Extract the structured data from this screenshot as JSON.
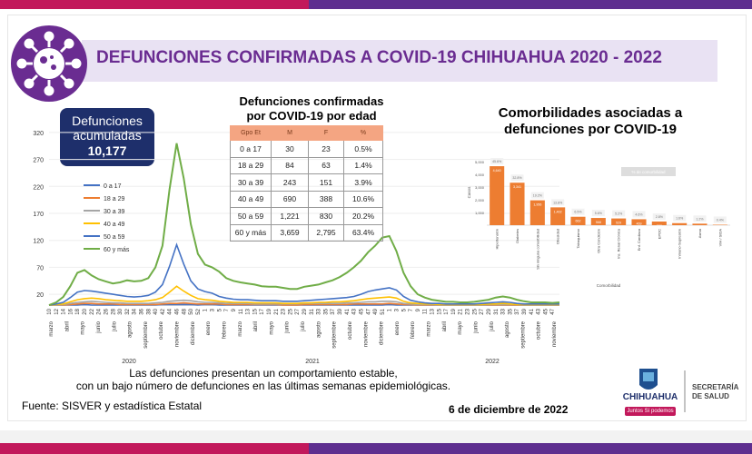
{
  "header": {
    "title": "DEFUNCIONES CONFIRMADAS A COVID-19 CHIHUAHUA 2020 - 2022"
  },
  "colors": {
    "pink": "#c2185b",
    "purple": "#6a2c91",
    "navy": "#1e2f6b",
    "orange": "#ed7d31"
  },
  "accumulated": {
    "label_line1": "Defunciones",
    "label_line2": "acumuladas",
    "value": "10,177"
  },
  "age_table": {
    "title_line1": "Defunciones confirmadas",
    "title_line2": "por COVID-19 por edad",
    "headers": [
      "Gpo Et",
      "M",
      "F",
      "%"
    ],
    "rows": [
      [
        "0 a 17",
        "30",
        "23",
        "0.5%"
      ],
      [
        "18 a 29",
        "84",
        "63",
        "1.4%"
      ],
      [
        "30 a 39",
        "243",
        "151",
        "3.9%"
      ],
      [
        "40 a 49",
        "690",
        "388",
        "10.6%"
      ],
      [
        "50 a 59",
        "1,221",
        "830",
        "20.2%"
      ],
      [
        "60 y más",
        "3,659",
        "2,795",
        "63.4%"
      ]
    ]
  },
  "comorbidities": {
    "title_line1": "Comorbilidades asociadas a",
    "title_line2": "defunciones por COVID-19"
  },
  "footer": {
    "note_line1": "Las defunciones presentan un comportamiento estable,",
    "note_line2": "con un bajo número de defunciones en las últimas semanas epidemiológicas.",
    "source": "Fuente: SISVER y estadística Estatal",
    "date": "6 de diciembre de 2022"
  },
  "logo": {
    "state": "CHIHUAHUA",
    "tagline": "Juntos Sí podemos",
    "secretaria_line1": "SECRETARÍA",
    "secretaria_line2": "DE SALUD"
  },
  "chart_data": [
    {
      "type": "line",
      "title": "",
      "ylim": [
        0,
        340
      ],
      "y_ticks": [
        20,
        70,
        120,
        170,
        220,
        270,
        320
      ],
      "x_month_labels": [
        "marzo",
        "abril",
        "mayo",
        "junio",
        "julio",
        "agosto",
        "septiembre",
        "octubre",
        "noviembre",
        "diciembre",
        "enero",
        "febrero",
        "marzo",
        "abril",
        "mayo",
        "junio",
        "julio",
        "agosto",
        "septiembre",
        "octubre",
        "noviembre",
        "diciembre",
        "enero",
        "febrero",
        "marzo",
        "abril",
        "mayo",
        "junio",
        "julio",
        "agosto",
        "septiembre",
        "octubre",
        "noviembre"
      ],
      "x_week_labels": [
        "10",
        "12",
        "14",
        "16",
        "18",
        "20",
        "22",
        "24",
        "26",
        "28",
        "30",
        "32",
        "34",
        "36",
        "38",
        "40",
        "42",
        "44",
        "46",
        "48",
        "50",
        "52",
        "1",
        "3",
        "5",
        "7",
        "9",
        "11",
        "13",
        "15",
        "17",
        "19",
        "21",
        "23",
        "25",
        "27",
        "29",
        "31",
        "33",
        "35",
        "37",
        "39",
        "41",
        "43",
        "45",
        "47",
        "49",
        "51",
        "1",
        "3",
        "5",
        "7",
        "9",
        "11",
        "13",
        "15",
        "17",
        "19",
        "21",
        "23",
        "25",
        "27",
        "29",
        "31",
        "33",
        "35",
        "37",
        "39",
        "41",
        "43",
        "45",
        "47"
      ],
      "year_labels": [
        "2020",
        "2021",
        "2022"
      ],
      "legend_position": "left",
      "series": [
        {
          "name": "0 a 17",
          "color": "#4472c4",
          "values": [
            0,
            0,
            0,
            0,
            0,
            1,
            0,
            0,
            0,
            0,
            0,
            0,
            0,
            0,
            0,
            0,
            1,
            1,
            1,
            1,
            1,
            0,
            1,
            1,
            0,
            0,
            0,
            0,
            0,
            0,
            0,
            0,
            0,
            0,
            0,
            0,
            0,
            0,
            0,
            0,
            0,
            0,
            0,
            0,
            0,
            0,
            0,
            0,
            1,
            0,
            0,
            0,
            0,
            0,
            0,
            0,
            0,
            0,
            0,
            0,
            0,
            0,
            0,
            0,
            0,
            0,
            0,
            0,
            0,
            0,
            0,
            0,
            0
          ]
        },
        {
          "name": "18 a 29",
          "color": "#ed7d31",
          "values": [
            0,
            0,
            0,
            1,
            2,
            3,
            3,
            2,
            2,
            2,
            1,
            1,
            1,
            1,
            1,
            1,
            2,
            3,
            3,
            4,
            3,
            2,
            2,
            2,
            2,
            1,
            1,
            1,
            1,
            1,
            1,
            1,
            1,
            0,
            0,
            0,
            1,
            1,
            1,
            1,
            1,
            1,
            1,
            2,
            2,
            2,
            2,
            2,
            3,
            2,
            1,
            1,
            0,
            0,
            0,
            0,
            0,
            0,
            0,
            0,
            0,
            0,
            0,
            0,
            0,
            0,
            0,
            0,
            0,
            0,
            0,
            0,
            0
          ]
        },
        {
          "name": "30 a 39",
          "color": "#a5a5a5",
          "values": [
            0,
            0,
            1,
            3,
            5,
            6,
            7,
            6,
            5,
            4,
            4,
            3,
            3,
            3,
            3,
            4,
            5,
            7,
            8,
            9,
            8,
            6,
            5,
            5,
            4,
            3,
            3,
            3,
            3,
            2,
            2,
            2,
            2,
            2,
            2,
            2,
            3,
            3,
            3,
            3,
            3,
            3,
            4,
            4,
            5,
            6,
            6,
            7,
            7,
            6,
            3,
            2,
            1,
            1,
            1,
            0,
            0,
            0,
            0,
            0,
            0,
            0,
            1,
            1,
            1,
            1,
            1,
            0,
            0,
            0,
            0,
            0,
            0
          ]
        },
        {
          "name": "40 a 49",
          "color": "#ffc000",
          "values": [
            0,
            1,
            2,
            6,
            10,
            12,
            13,
            12,
            10,
            9,
            8,
            7,
            7,
            7,
            8,
            10,
            14,
            24,
            35,
            26,
            18,
            12,
            10,
            9,
            7,
            6,
            5,
            5,
            5,
            4,
            4,
            4,
            4,
            3,
            3,
            3,
            4,
            4,
            5,
            5,
            6,
            6,
            7,
            8,
            10,
            12,
            13,
            14,
            15,
            13,
            7,
            4,
            3,
            2,
            2,
            1,
            1,
            1,
            1,
            1,
            1,
            1,
            2,
            2,
            3,
            2,
            1,
            1,
            1,
            1,
            1,
            1,
            1
          ]
        },
        {
          "name": "50 a 59",
          "color": "#4472c4",
          "values": [
            0,
            2,
            5,
            14,
            24,
            27,
            26,
            24,
            22,
            20,
            18,
            16,
            15,
            16,
            18,
            24,
            38,
            72,
            112,
            76,
            45,
            30,
            25,
            22,
            16,
            13,
            11,
            10,
            10,
            9,
            8,
            8,
            8,
            7,
            7,
            7,
            8,
            9,
            10,
            11,
            12,
            13,
            14,
            16,
            20,
            25,
            28,
            30,
            32,
            28,
            16,
            9,
            6,
            4,
            3,
            3,
            2,
            2,
            2,
            2,
            2,
            3,
            4,
            5,
            6,
            5,
            3,
            2,
            2,
            2,
            2,
            2,
            2
          ]
        },
        {
          "name": "60 y más",
          "color": "#70ad47",
          "values": [
            0,
            5,
            15,
            35,
            60,
            65,
            55,
            48,
            44,
            40,
            42,
            46,
            44,
            45,
            50,
            70,
            110,
            215,
            300,
            235,
            150,
            95,
            75,
            70,
            62,
            50,
            45,
            42,
            40,
            38,
            35,
            34,
            34,
            32,
            30,
            30,
            34,
            36,
            38,
            42,
            46,
            52,
            60,
            70,
            82,
            98,
            110,
            125,
            128,
            100,
            60,
            35,
            20,
            14,
            10,
            8,
            6,
            6,
            5,
            5,
            6,
            8,
            10,
            14,
            16,
            14,
            10,
            7,
            5,
            5,
            5,
            4,
            5
          ]
        }
      ]
    },
    {
      "type": "bar",
      "title": "",
      "ylabel": "Casos",
      "xlabel": "Comorbilidad",
      "legend": [
        "% de comorbilidad"
      ],
      "ylim": [
        0,
        5000
      ],
      "y_ticks": [
        "1,000",
        "2,000",
        "3,000",
        "4,000",
        "5,000"
      ],
      "categories": [
        "Hipertensión",
        "Diabetes",
        "Sin ninguna comorbilidad",
        "Obesidad",
        "Tabaquismo",
        "Otra Condición",
        "Ins. Renal Crónica",
        "Enf. Cardiaca",
        "EPOC",
        "Inmuno-Supresión",
        "Asma",
        "VIH / SIDA"
      ],
      "values": [
        4640,
        3341,
        1956,
        1402,
        662,
        568,
        529,
        469,
        288,
        162,
        120,
        36
      ],
      "value_labels": [
        "4,640",
        "3,341",
        "1,956",
        "1,402",
        "662",
        "568",
        "529",
        "469",
        "288",
        "162",
        "120",
        "36"
      ],
      "pct_labels": [
        "45.6%",
        "32.8%",
        "19.2%",
        "13.8%",
        "6.5%",
        "5.6%",
        "5.2%",
        "4.6%",
        "2.8%",
        "1.6%",
        "1.2%",
        "0.4%"
      ]
    }
  ]
}
